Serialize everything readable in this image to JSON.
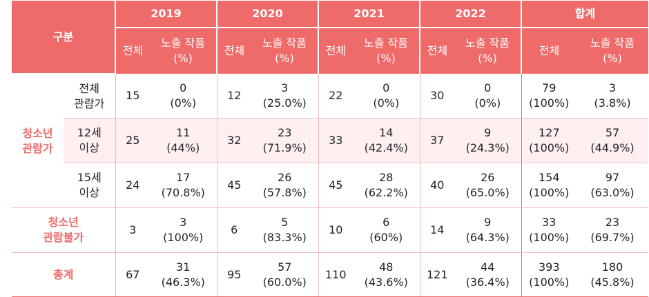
{
  "header": {
    "category": "구분",
    "years": [
      "2019",
      "2020",
      "2021",
      "2022",
      "합계"
    ],
    "col_total": "전체",
    "col_exposed_1": "노출 작품",
    "col_exposed_2": "(%)"
  },
  "groups": {
    "youth_viewable": "청소년\n관람가",
    "not_for_youth": "청소년\n관람불가",
    "grand_total": "총계"
  },
  "rows": [
    {
      "sub": "전체\n관람가",
      "cells": [
        {
          "total": "15",
          "exposed": "0",
          "pct": "(0%)"
        },
        {
          "total": "12",
          "exposed": "3",
          "pct": "(25.0%)"
        },
        {
          "total": "22",
          "exposed": "0",
          "pct": "(0%)"
        },
        {
          "total": "30",
          "exposed": "0",
          "pct": "(0%)"
        },
        {
          "total": "79",
          "total_pct": "(100%)",
          "exposed": "3",
          "pct": "(3.8%)"
        }
      ]
    },
    {
      "sub": "12세\n이상",
      "cells": [
        {
          "total": "25",
          "exposed": "11",
          "pct": "(44%)"
        },
        {
          "total": "32",
          "exposed": "23",
          "pct": "(71.9%)"
        },
        {
          "total": "33",
          "exposed": "14",
          "pct": "(42.4%)"
        },
        {
          "total": "37",
          "exposed": "9",
          "pct": "(24.3%)"
        },
        {
          "total": "127",
          "total_pct": "(100%)",
          "exposed": "57",
          "pct": "(44.9%)"
        }
      ]
    },
    {
      "sub": "15세\n이상",
      "cells": [
        {
          "total": "24",
          "exposed": "17",
          "pct": "(70.8%)"
        },
        {
          "total": "45",
          "exposed": "26",
          "pct": "(57.8%)"
        },
        {
          "total": "45",
          "exposed": "28",
          "pct": "(62.2%)"
        },
        {
          "total": "40",
          "exposed": "26",
          "pct": "(65.0%)"
        },
        {
          "total": "154",
          "total_pct": "(100%)",
          "exposed": "97",
          "pct": "(63.0%)"
        }
      ]
    },
    {
      "cells": [
        {
          "total": "3",
          "exposed": "3",
          "pct": "(100%)"
        },
        {
          "total": "6",
          "exposed": "5",
          "pct": "(83.3%)"
        },
        {
          "total": "10",
          "exposed": "6",
          "pct": "(60%)"
        },
        {
          "total": "14",
          "exposed": "9",
          "pct": "(64.3%)"
        },
        {
          "total": "33",
          "total_pct": "(100%)",
          "exposed": "23",
          "pct": "(69.7%)"
        }
      ]
    },
    {
      "cells": [
        {
          "total": "67",
          "exposed": "31",
          "pct": "(46.3%)"
        },
        {
          "total": "95",
          "exposed": "57",
          "pct": "(60.0%)"
        },
        {
          "total": "110",
          "exposed": "48",
          "pct": "(43.6%)"
        },
        {
          "total": "121",
          "exposed": "44",
          "pct": "(36.4%)"
        },
        {
          "total": "393",
          "total_pct": "(100%)",
          "exposed": "180",
          "pct": "(45.8%)"
        }
      ]
    }
  ],
  "colors": {
    "accent": "#ee6b69",
    "row_tint": "#fef0f0",
    "rule": "#f0c0bf"
  }
}
